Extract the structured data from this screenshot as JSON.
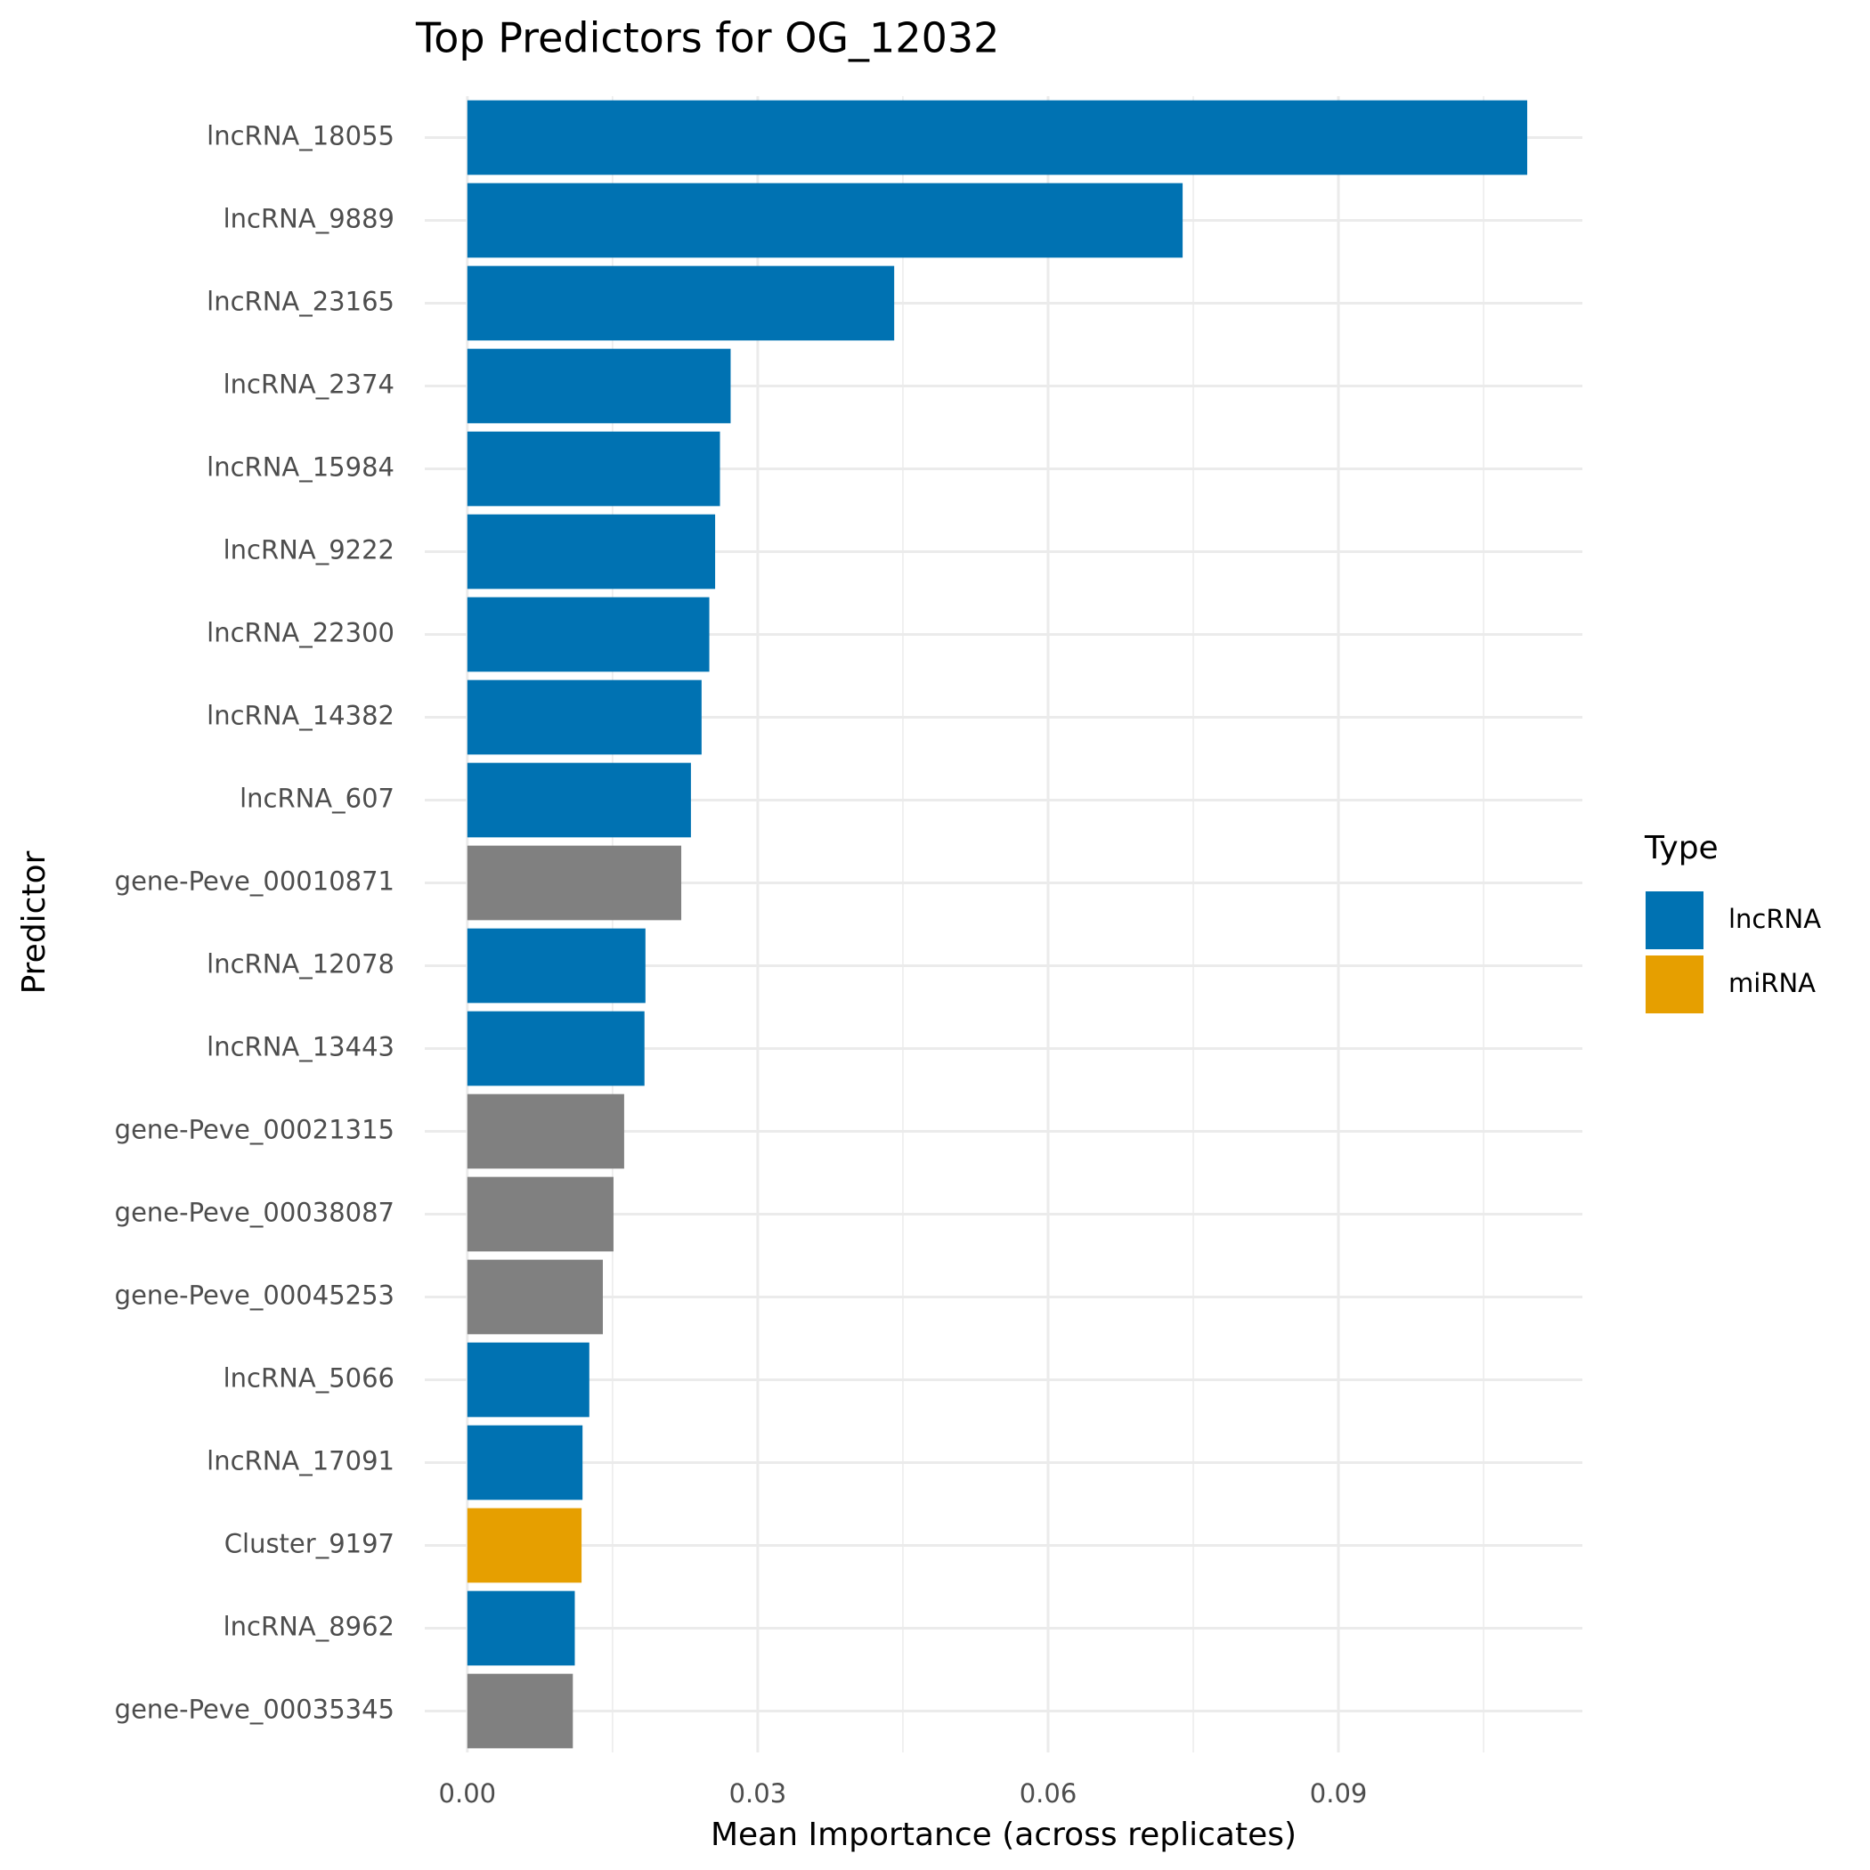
{
  "chart_data": {
    "type": "bar",
    "orientation": "horizontal",
    "title": "Top Predictors for OG_12032",
    "x_label": "Mean Importance (across replicates)",
    "y_label": "Predictor",
    "categories": [
      "lncRNA_18055",
      "lncRNA_9889",
      "lncRNA_23165",
      "lncRNA_2374",
      "lncRNA_15984",
      "lncRNA_9222",
      "lncRNA_22300",
      "lncRNA_14382",
      "lncRNA_607",
      "gene-Peve_00010871",
      "lncRNA_12078",
      "lncRNA_13443",
      "gene-Peve_00021315",
      "gene-Peve_00038087",
      "gene-Peve_00045253",
      "lncRNA_5066",
      "lncRNA_17091",
      "Cluster_9197",
      "lncRNA_8962",
      "gene-Peve_00035345"
    ],
    "values": [
      0.1095,
      0.0739,
      0.0441,
      0.0272,
      0.0261,
      0.0256,
      0.025,
      0.0242,
      0.0231,
      0.0221,
      0.0184,
      0.0183,
      0.0162,
      0.0151,
      0.014,
      0.0126,
      0.0119,
      0.0118,
      0.0111,
      0.0109
    ],
    "colors": [
      "#0072b2",
      "#0072b2",
      "#0072b2",
      "#0072b2",
      "#0072b2",
      "#0072b2",
      "#0072b2",
      "#0072b2",
      "#0072b2",
      "#808080",
      "#0072b2",
      "#0072b2",
      "#808080",
      "#808080",
      "#808080",
      "#0072b2",
      "#0072b2",
      "#e69f00",
      "#0072b2",
      "#808080"
    ],
    "legend": {
      "title": "Type",
      "entries": [
        {
          "name": "lncRNA",
          "color": "#0072b2"
        },
        {
          "name": "miRNA",
          "color": "#e69f00"
        }
      ]
    },
    "xlim": [
      -0.0044,
      0.1152
    ],
    "xticks": [
      {
        "value": 0,
        "label": "0.00"
      },
      {
        "value": 0.03,
        "label": "0.03"
      },
      {
        "value": 0.06,
        "label": "0.06"
      },
      {
        "value": 0.09,
        "label": "0.09"
      }
    ],
    "x_minor_ticks": [
      0.015,
      0.045,
      0.075,
      0.105
    ],
    "grid": true
  }
}
